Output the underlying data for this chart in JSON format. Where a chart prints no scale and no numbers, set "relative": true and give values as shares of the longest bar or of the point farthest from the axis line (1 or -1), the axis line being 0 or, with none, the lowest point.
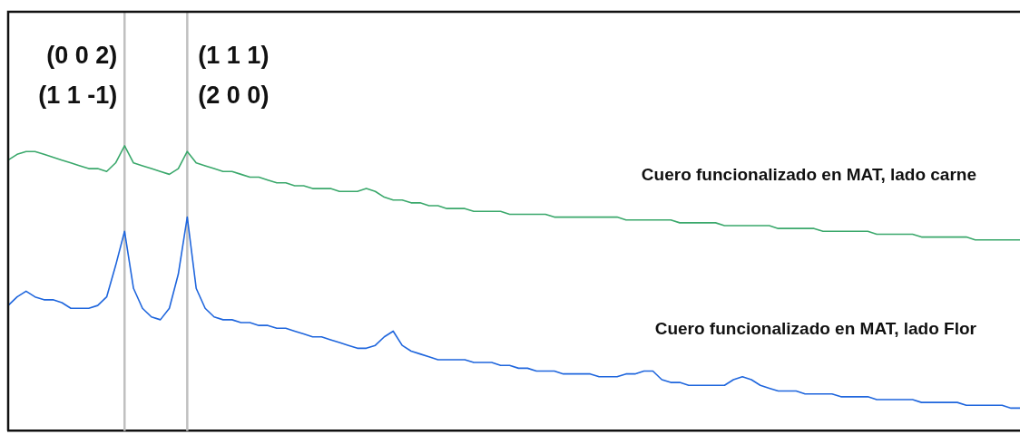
{
  "chart_data": {
    "type": "line",
    "relative": true,
    "legend": false,
    "grid": false,
    "marker": "none",
    "line_style": "solid",
    "categories": [
      null,
      null,
      null,
      null,
      null,
      null,
      null,
      null,
      null,
      null,
      null,
      null,
      null,
      null,
      null,
      null,
      null,
      null,
      null,
      null,
      null,
      null,
      null,
      null,
      null,
      null,
      null,
      null,
      null,
      null,
      null,
      null,
      null,
      null,
      null,
      null,
      null,
      null,
      null,
      null,
      null,
      null,
      null,
      null,
      null,
      null,
      null,
      null,
      null,
      null,
      null,
      null,
      null,
      null,
      null,
      null,
      null,
      null,
      null,
      null,
      null,
      null,
      null,
      null,
      null,
      null,
      null,
      null,
      null,
      null,
      null,
      null,
      null,
      null,
      null,
      null,
      null,
      null,
      null,
      null,
      null,
      null,
      null,
      null,
      null,
      null,
      null,
      null,
      null,
      null,
      null,
      null,
      null,
      null,
      null,
      null,
      null,
      null,
      null,
      null,
      null,
      null,
      null,
      null,
      null,
      null,
      null,
      null,
      null,
      null,
      null,
      null,
      null,
      null
    ],
    "series": [
      {
        "name": "Cuero funcionalizado en MAT, lado carne",
        "color": "#3aa86b",
        "values": [
          0.95,
          0.97,
          0.98,
          0.98,
          0.97,
          0.96,
          0.95,
          0.94,
          0.93,
          0.92,
          0.92,
          0.91,
          0.94,
          1.0,
          0.94,
          0.93,
          0.92,
          0.91,
          0.9,
          0.92,
          0.98,
          0.94,
          0.93,
          0.92,
          0.91,
          0.91,
          0.9,
          0.89,
          0.89,
          0.88,
          0.87,
          0.87,
          0.86,
          0.86,
          0.85,
          0.85,
          0.85,
          0.84,
          0.84,
          0.84,
          0.85,
          0.84,
          0.82,
          0.81,
          0.81,
          0.8,
          0.8,
          0.79,
          0.79,
          0.78,
          0.78,
          0.78,
          0.77,
          0.77,
          0.77,
          0.77,
          0.76,
          0.76,
          0.76,
          0.76,
          0.76,
          0.75,
          0.75,
          0.75,
          0.75,
          0.75,
          0.75,
          0.75,
          0.75,
          0.74,
          0.74,
          0.74,
          0.74,
          0.74,
          0.74,
          0.73,
          0.73,
          0.73,
          0.73,
          0.73,
          0.72,
          0.72,
          0.72,
          0.72,
          0.72,
          0.72,
          0.71,
          0.71,
          0.71,
          0.71,
          0.71,
          0.7,
          0.7,
          0.7,
          0.7,
          0.7,
          0.7,
          0.69,
          0.69,
          0.69,
          0.69,
          0.69,
          0.68,
          0.68,
          0.68,
          0.68,
          0.68,
          0.68,
          0.67,
          0.67,
          0.67,
          0.67,
          0.67,
          0.67
        ]
      },
      {
        "name": "Cuero funcionalizado en MAT, lado Flor",
        "color": "#1f66dd",
        "values": [
          0.44,
          0.47,
          0.49,
          0.47,
          0.46,
          0.46,
          0.45,
          0.43,
          0.43,
          0.43,
          0.44,
          0.47,
          0.58,
          0.7,
          0.5,
          0.43,
          0.4,
          0.39,
          0.43,
          0.55,
          0.75,
          0.5,
          0.43,
          0.4,
          0.39,
          0.39,
          0.38,
          0.38,
          0.37,
          0.37,
          0.36,
          0.36,
          0.35,
          0.34,
          0.33,
          0.33,
          0.32,
          0.31,
          0.3,
          0.29,
          0.29,
          0.3,
          0.33,
          0.35,
          0.3,
          0.28,
          0.27,
          0.26,
          0.25,
          0.25,
          0.25,
          0.25,
          0.24,
          0.24,
          0.24,
          0.23,
          0.23,
          0.22,
          0.22,
          0.21,
          0.21,
          0.21,
          0.2,
          0.2,
          0.2,
          0.2,
          0.19,
          0.19,
          0.19,
          0.2,
          0.2,
          0.21,
          0.21,
          0.18,
          0.17,
          0.17,
          0.16,
          0.16,
          0.16,
          0.16,
          0.16,
          0.18,
          0.19,
          0.18,
          0.16,
          0.15,
          0.14,
          0.14,
          0.14,
          0.13,
          0.13,
          0.13,
          0.13,
          0.12,
          0.12,
          0.12,
          0.12,
          0.11,
          0.11,
          0.11,
          0.11,
          0.11,
          0.1,
          0.1,
          0.1,
          0.1,
          0.1,
          0.09,
          0.09,
          0.09,
          0.09,
          0.09,
          0.08,
          0.08
        ]
      }
    ],
    "annotations": [
      "(0 0 2)\n(1 1 -1)",
      "(1 1 1)\n(2 0 0)"
    ]
  }
}
